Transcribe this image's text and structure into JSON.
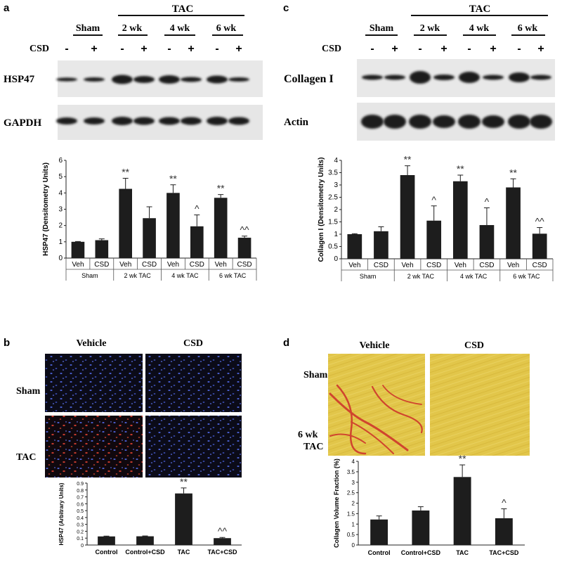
{
  "panel_letters": [
    "a",
    "b",
    "c",
    "d"
  ],
  "blot_a": {
    "group_sham": "Sham",
    "group_tac": "TAC",
    "timepoints": [
      "2 wk",
      "4 wk",
      "6 wk"
    ],
    "csd_label": "CSD",
    "lane_signs": [
      "-",
      "+",
      "-",
      "+",
      "-",
      "+",
      "-",
      "+"
    ],
    "row_labels": [
      "HSP47",
      "GAPDH"
    ]
  },
  "blot_c": {
    "group_sham": "Sham",
    "group_tac": "TAC",
    "timepoints": [
      "2 wk",
      "4 wk",
      "6 wk"
    ],
    "csd_label": "CSD",
    "lane_signs": [
      "-",
      "+",
      "-",
      "+",
      "-",
      "+",
      "-",
      "+"
    ],
    "row_labels": [
      "Collagen I",
      "Actin"
    ]
  },
  "micro_b": {
    "columns": [
      "Vehicle",
      "CSD"
    ],
    "rows": [
      "Sham",
      "TAC"
    ]
  },
  "micro_d": {
    "columns": [
      "Vehicle",
      "CSD"
    ],
    "rows": [
      "Sham",
      "6 wk TAC"
    ]
  },
  "chart_data": [
    {
      "id": "a",
      "type": "bar",
      "ylabel": "HSP47 (Densitometry Units)",
      "ylim": [
        0,
        6
      ],
      "yticks": [
        0,
        1,
        2,
        3,
        4,
        5,
        6
      ],
      "categories": [
        "Veh",
        "CSD",
        "Veh",
        "CSD",
        "Veh",
        "CSD",
        "Veh",
        "CSD"
      ],
      "groups": [
        "Sham",
        "2 wk TAC",
        "4 wk TAC",
        "6 wk TAC"
      ],
      "values": [
        1.0,
        1.1,
        4.25,
        2.45,
        4.0,
        1.95,
        3.7,
        1.25
      ],
      "errors": [
        0.02,
        0.08,
        0.65,
        0.7,
        0.5,
        0.7,
        0.2,
        0.1
      ],
      "annotations": [
        "",
        "",
        "**",
        "",
        "**",
        "^",
        "**",
        "^^"
      ]
    },
    {
      "id": "c",
      "type": "bar",
      "ylabel": "Collagen I (Densitometry Units)",
      "ylim": [
        0,
        4
      ],
      "yticks": [
        0,
        0.5,
        1,
        1.5,
        2,
        2.5,
        3,
        3.5,
        4
      ],
      "categories": [
        "Veh",
        "CSD",
        "Veh",
        "CSD",
        "Veh",
        "CSD",
        "Veh",
        "CSD"
      ],
      "groups": [
        "Sham",
        "2 wk TAC",
        "4 wk TAC",
        "6 wk TAC"
      ],
      "values": [
        1.0,
        1.12,
        3.4,
        1.55,
        3.15,
        1.37,
        2.9,
        1.02
      ],
      "errors": [
        0.02,
        0.18,
        0.38,
        0.6,
        0.25,
        0.7,
        0.35,
        0.25
      ],
      "annotations": [
        "",
        "",
        "**",
        "^",
        "**",
        "^",
        "**",
        "^^"
      ]
    },
    {
      "id": "b",
      "type": "bar",
      "ylabel": "HSP47 (Arbitrary Units)",
      "ylim": [
        0,
        0.9
      ],
      "yticks": [
        0,
        0.1,
        0.2,
        0.3,
        0.4,
        0.5,
        0.6,
        0.7,
        0.8,
        0.9
      ],
      "categories": [
        "Control",
        "Control+CSD",
        "TAC",
        "TAC+CSD"
      ],
      "values": [
        0.125,
        0.127,
        0.75,
        0.1
      ],
      "errors": [
        0.005,
        0.005,
        0.08,
        0.01
      ],
      "annotations": [
        "",
        "",
        "**",
        "^^"
      ]
    },
    {
      "id": "d",
      "type": "bar",
      "ylabel": "Collagen Volume Fraction (%)",
      "ylim": [
        0,
        4
      ],
      "yticks": [
        0,
        0.5,
        1,
        1.5,
        2,
        2.5,
        3,
        3.5,
        4
      ],
      "categories": [
        "Control",
        "Control+CSD",
        "TAC",
        "TAC+CSD"
      ],
      "values": [
        1.22,
        1.65,
        3.25,
        1.28
      ],
      "errors": [
        0.17,
        0.18,
        0.58,
        0.45
      ],
      "annotations": [
        "",
        "",
        "**",
        "^"
      ]
    }
  ]
}
